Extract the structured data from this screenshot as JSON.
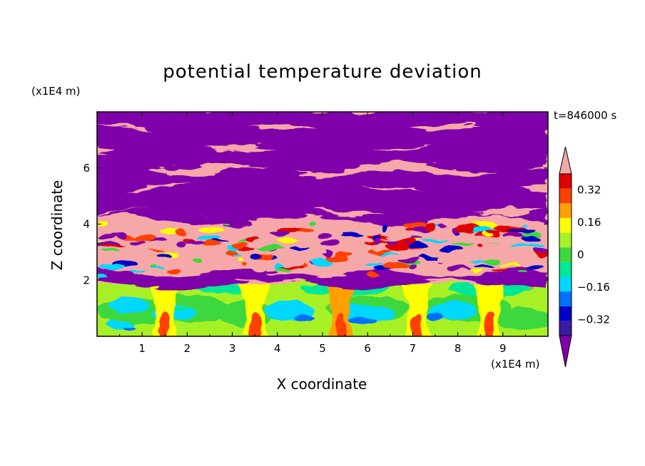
{
  "chart_data": {
    "type": "heatmap",
    "title": "potential temperature deviation",
    "xlabel": "X coordinate",
    "ylabel": "Z coordinate",
    "x_scale_label": "(x1E4 m)",
    "y_scale_label": "(x1E4 m)",
    "time_label": "t=846000 s",
    "xlim": [
      0,
      10
    ],
    "ylim": [
      0,
      8
    ],
    "x_ticks": [
      "1",
      "2",
      "3",
      "4",
      "5",
      "6",
      "7",
      "8",
      "9"
    ],
    "y_ticks": [
      "2",
      "4",
      "6"
    ],
    "colorbar": {
      "levels": [
        -0.48,
        -0.4,
        -0.32,
        -0.24,
        -0.16,
        -0.08,
        0,
        0.08,
        0.16,
        0.24,
        0.32,
        0.4,
        0.48
      ],
      "tick_labels": [
        "0.32",
        "0.16",
        "0",
        "−0.16",
        "−0.32"
      ],
      "tick_values": [
        0.32,
        0.16,
        0,
        -0.16,
        -0.32
      ],
      "colors": [
        "#7f00aa",
        "#3a1aa0",
        "#0000c8",
        "#0070ff",
        "#00d8ff",
        "#00e896",
        "#3cd83c",
        "#a8f028",
        "#ffff00",
        "#ffa000",
        "#ff4000",
        "#e00000",
        "#f6a8a8"
      ],
      "extend": "both"
    },
    "regions": {
      "upper_layer": "alternating purple (<-0.48) and pink (>0.48) bands, z 2-8",
      "lower_layer": "convective cells near 0 (green/cyan) with warm plumes, z 0-2"
    }
  }
}
